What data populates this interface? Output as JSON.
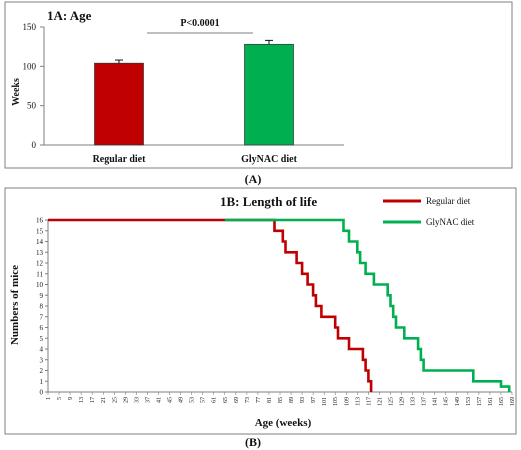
{
  "chart_data": [
    {
      "type": "bar",
      "title": "1A: Age",
      "ylabel": "Weeks",
      "xlabel": "",
      "categories": [
        "Regular diet",
        "GlyNAC diet"
      ],
      "values": [
        104,
        128
      ],
      "errors": [
        4,
        5
      ],
      "colors": [
        "#c00000",
        "#00b050"
      ],
      "ylim": [
        0,
        150
      ],
      "yticks": [
        0,
        50,
        100,
        150
      ],
      "annotation": "P<0.0001",
      "panel_label": "(A)",
      "grid": false
    },
    {
      "type": "line",
      "title": "1B: Length of life",
      "xlabel": "Age (weeks)",
      "ylabel": "Numbers of mice",
      "xlim": [
        1,
        169
      ],
      "ylim": [
        0,
        16
      ],
      "panel_label": "(B)",
      "grid": false,
      "legend_position": "top-right",
      "series": [
        {
          "name": "Regular diet",
          "color": "#c00000",
          "points": [
            [
              1,
              16
            ],
            [
              65,
              16
            ],
            [
              83,
              16
            ],
            [
              83,
              15
            ],
            [
              86,
              15
            ],
            [
              86,
              14
            ],
            [
              87,
              14
            ],
            [
              87,
              13
            ],
            [
              91,
              13
            ],
            [
              91,
              12
            ],
            [
              93,
              12
            ],
            [
              93,
              11
            ],
            [
              95,
              11
            ],
            [
              95,
              10
            ],
            [
              97,
              10
            ],
            [
              97,
              9
            ],
            [
              98,
              9
            ],
            [
              98,
              8
            ],
            [
              100,
              8
            ],
            [
              100,
              7
            ],
            [
              105,
              7
            ],
            [
              105,
              6
            ],
            [
              106,
              6
            ],
            [
              106,
              5
            ],
            [
              110,
              5
            ],
            [
              110,
              4
            ],
            [
              115,
              4
            ],
            [
              115,
              3
            ],
            [
              116,
              3
            ],
            [
              116,
              2
            ],
            [
              117,
              2
            ],
            [
              117,
              1
            ],
            [
              118,
              1
            ],
            [
              118,
              0
            ]
          ]
        },
        {
          "name": "GlyNAC diet",
          "color": "#00b050",
          "points": [
            [
              65,
              16
            ],
            [
              108,
              16
            ],
            [
              108,
              15
            ],
            [
              110,
              15
            ],
            [
              110,
              14
            ],
            [
              113,
              14
            ],
            [
              113,
              13
            ],
            [
              114,
              13
            ],
            [
              114,
              12
            ],
            [
              116,
              12
            ],
            [
              116,
              11
            ],
            [
              119,
              11
            ],
            [
              119,
              10
            ],
            [
              124,
              10
            ],
            [
              124,
              9
            ],
            [
              125,
              9
            ],
            [
              125,
              8
            ],
            [
              126,
              8
            ],
            [
              126,
              7
            ],
            [
              127,
              7
            ],
            [
              127,
              6
            ],
            [
              130,
              6
            ],
            [
              130,
              5
            ],
            [
              135,
              5
            ],
            [
              135,
              4
            ],
            [
              136,
              4
            ],
            [
              136,
              3
            ],
            [
              137,
              3
            ],
            [
              137,
              2
            ],
            [
              155,
              2
            ],
            [
              155,
              1
            ],
            [
              165,
              1
            ],
            [
              165,
              0.5
            ],
            [
              168,
              0.5
            ],
            [
              168,
              0
            ]
          ]
        }
      ],
      "xticks": [
        1,
        5,
        9,
        13,
        17,
        21,
        25,
        29,
        33,
        37,
        41,
        45,
        49,
        53,
        57,
        61,
        65,
        69,
        73,
        77,
        81,
        85,
        89,
        93,
        97,
        101,
        105,
        109,
        113,
        117,
        121,
        125,
        129,
        133,
        137,
        141,
        145,
        149,
        153,
        157,
        161,
        165,
        169
      ],
      "yticks": [
        0,
        1,
        2,
        3,
        4,
        5,
        6,
        7,
        8,
        9,
        10,
        11,
        12,
        13,
        14,
        15,
        16
      ]
    }
  ]
}
